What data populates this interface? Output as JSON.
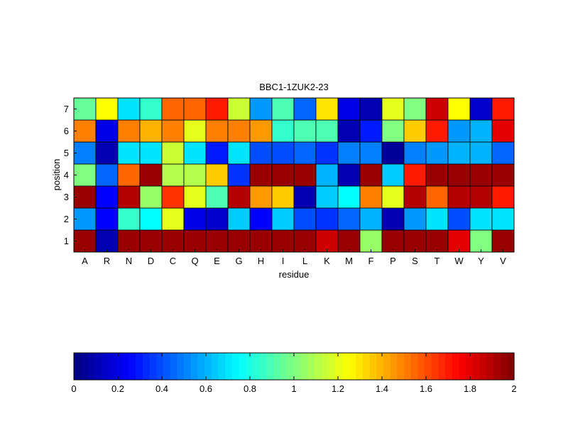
{
  "chart_data": {
    "type": "heatmap",
    "title": "BBC1-1ZUK2-23",
    "xlabel": "residue",
    "ylabel": "position",
    "x_categories": [
      "A",
      "R",
      "N",
      "D",
      "C",
      "Q",
      "E",
      "G",
      "H",
      "I",
      "L",
      "K",
      "M",
      "F",
      "P",
      "S",
      "T",
      "W",
      "Y",
      "V"
    ],
    "y_categories": [
      "1",
      "2",
      "3",
      "4",
      "5",
      "6",
      "7"
    ],
    "values": [
      [
        1.95,
        0.1,
        1.95,
        1.95,
        1.95,
        1.95,
        1.95,
        1.95,
        1.95,
        1.95,
        1.95,
        1.85,
        1.95,
        1.05,
        1.95,
        1.95,
        1.95,
        1.8,
        1.0,
        1.95
      ],
      [
        0.55,
        0.25,
        0.85,
        0.75,
        1.2,
        0.2,
        0.15,
        0.65,
        0.25,
        0.65,
        0.4,
        0.35,
        0.45,
        0.6,
        0.1,
        0.55,
        0.7,
        0.4,
        0.7,
        0.7
      ],
      [
        1.95,
        0.25,
        1.9,
        1.05,
        1.65,
        1.2,
        0.9,
        1.9,
        1.45,
        1.35,
        0.1,
        0.65,
        0.75,
        1.5,
        1.2,
        1.9,
        1.55,
        1.9,
        1.9,
        1.7
      ],
      [
        1.0,
        0.45,
        1.55,
        1.95,
        1.1,
        1.1,
        1.35,
        0.35,
        1.95,
        1.95,
        1.95,
        0.6,
        0.1,
        1.95,
        0.65,
        1.7,
        1.95,
        1.95,
        1.95,
        1.95
      ],
      [
        0.5,
        0.1,
        0.7,
        0.7,
        1.15,
        0.7,
        0.3,
        0.7,
        0.4,
        0.4,
        0.45,
        0.35,
        0.5,
        0.5,
        0.05,
        0.5,
        0.55,
        0.6,
        0.6,
        0.45
      ],
      [
        1.5,
        0.2,
        1.5,
        1.4,
        1.5,
        1.2,
        1.5,
        1.5,
        1.45,
        0.85,
        0.9,
        0.9,
        0.1,
        0.3,
        1.0,
        1.35,
        1.7,
        0.55,
        0.6,
        1.8
      ],
      [
        0.95,
        1.25,
        0.7,
        0.85,
        1.55,
        1.55,
        1.7,
        1.15,
        0.55,
        0.9,
        0.45,
        1.3,
        0.2,
        0.1,
        1.2,
        1.0,
        1.85,
        1.25,
        0.15,
        1.7
      ]
    ],
    "colormap": "jet",
    "clim": [
      0,
      2
    ],
    "colorbar": {
      "position": "bottom",
      "ticks": [
        "0",
        "0.2",
        "0.4",
        "0.6",
        "0.8",
        "1",
        "1.2",
        "1.4",
        "1.6",
        "1.8",
        "2"
      ]
    }
  }
}
